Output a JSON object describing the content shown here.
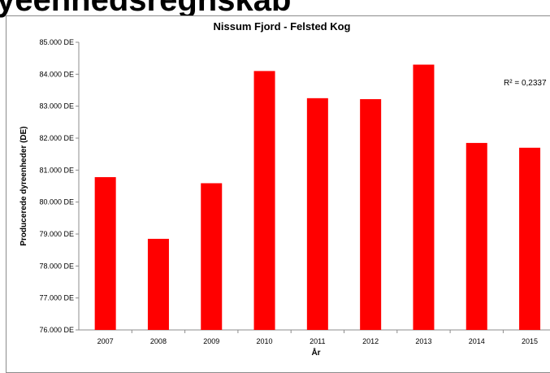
{
  "page": {
    "heading": "yeenhedsregnskab"
  },
  "chart_data": {
    "type": "bar",
    "title": "Nissum Fjord - Felsted Kog",
    "xlabel": "År",
    "ylabel": "Producerede dyreenheder (DE)",
    "categories": [
      "2007",
      "2008",
      "2009",
      "2010",
      "2011",
      "2012",
      "2013",
      "2014",
      "2015"
    ],
    "values": [
      80780,
      78850,
      80590,
      84100,
      83250,
      83220,
      84300,
      81850,
      81700
    ],
    "ylim": [
      76000,
      85000
    ],
    "y_ticks": [
      76000,
      77000,
      78000,
      79000,
      80000,
      81000,
      82000,
      83000,
      84000,
      85000
    ],
    "y_tick_labels": [
      "76.000 DE",
      "77.000 DE",
      "78.000 DE",
      "79.000 DE",
      "80.000 DE",
      "81.000 DE",
      "82.000 DE",
      "83.000 DE",
      "84.000 DE",
      "85.000 DE"
    ],
    "annotation": "R² = 0,2337",
    "bar_color": "#ff0000",
    "grid": false,
    "legend": "none"
  }
}
